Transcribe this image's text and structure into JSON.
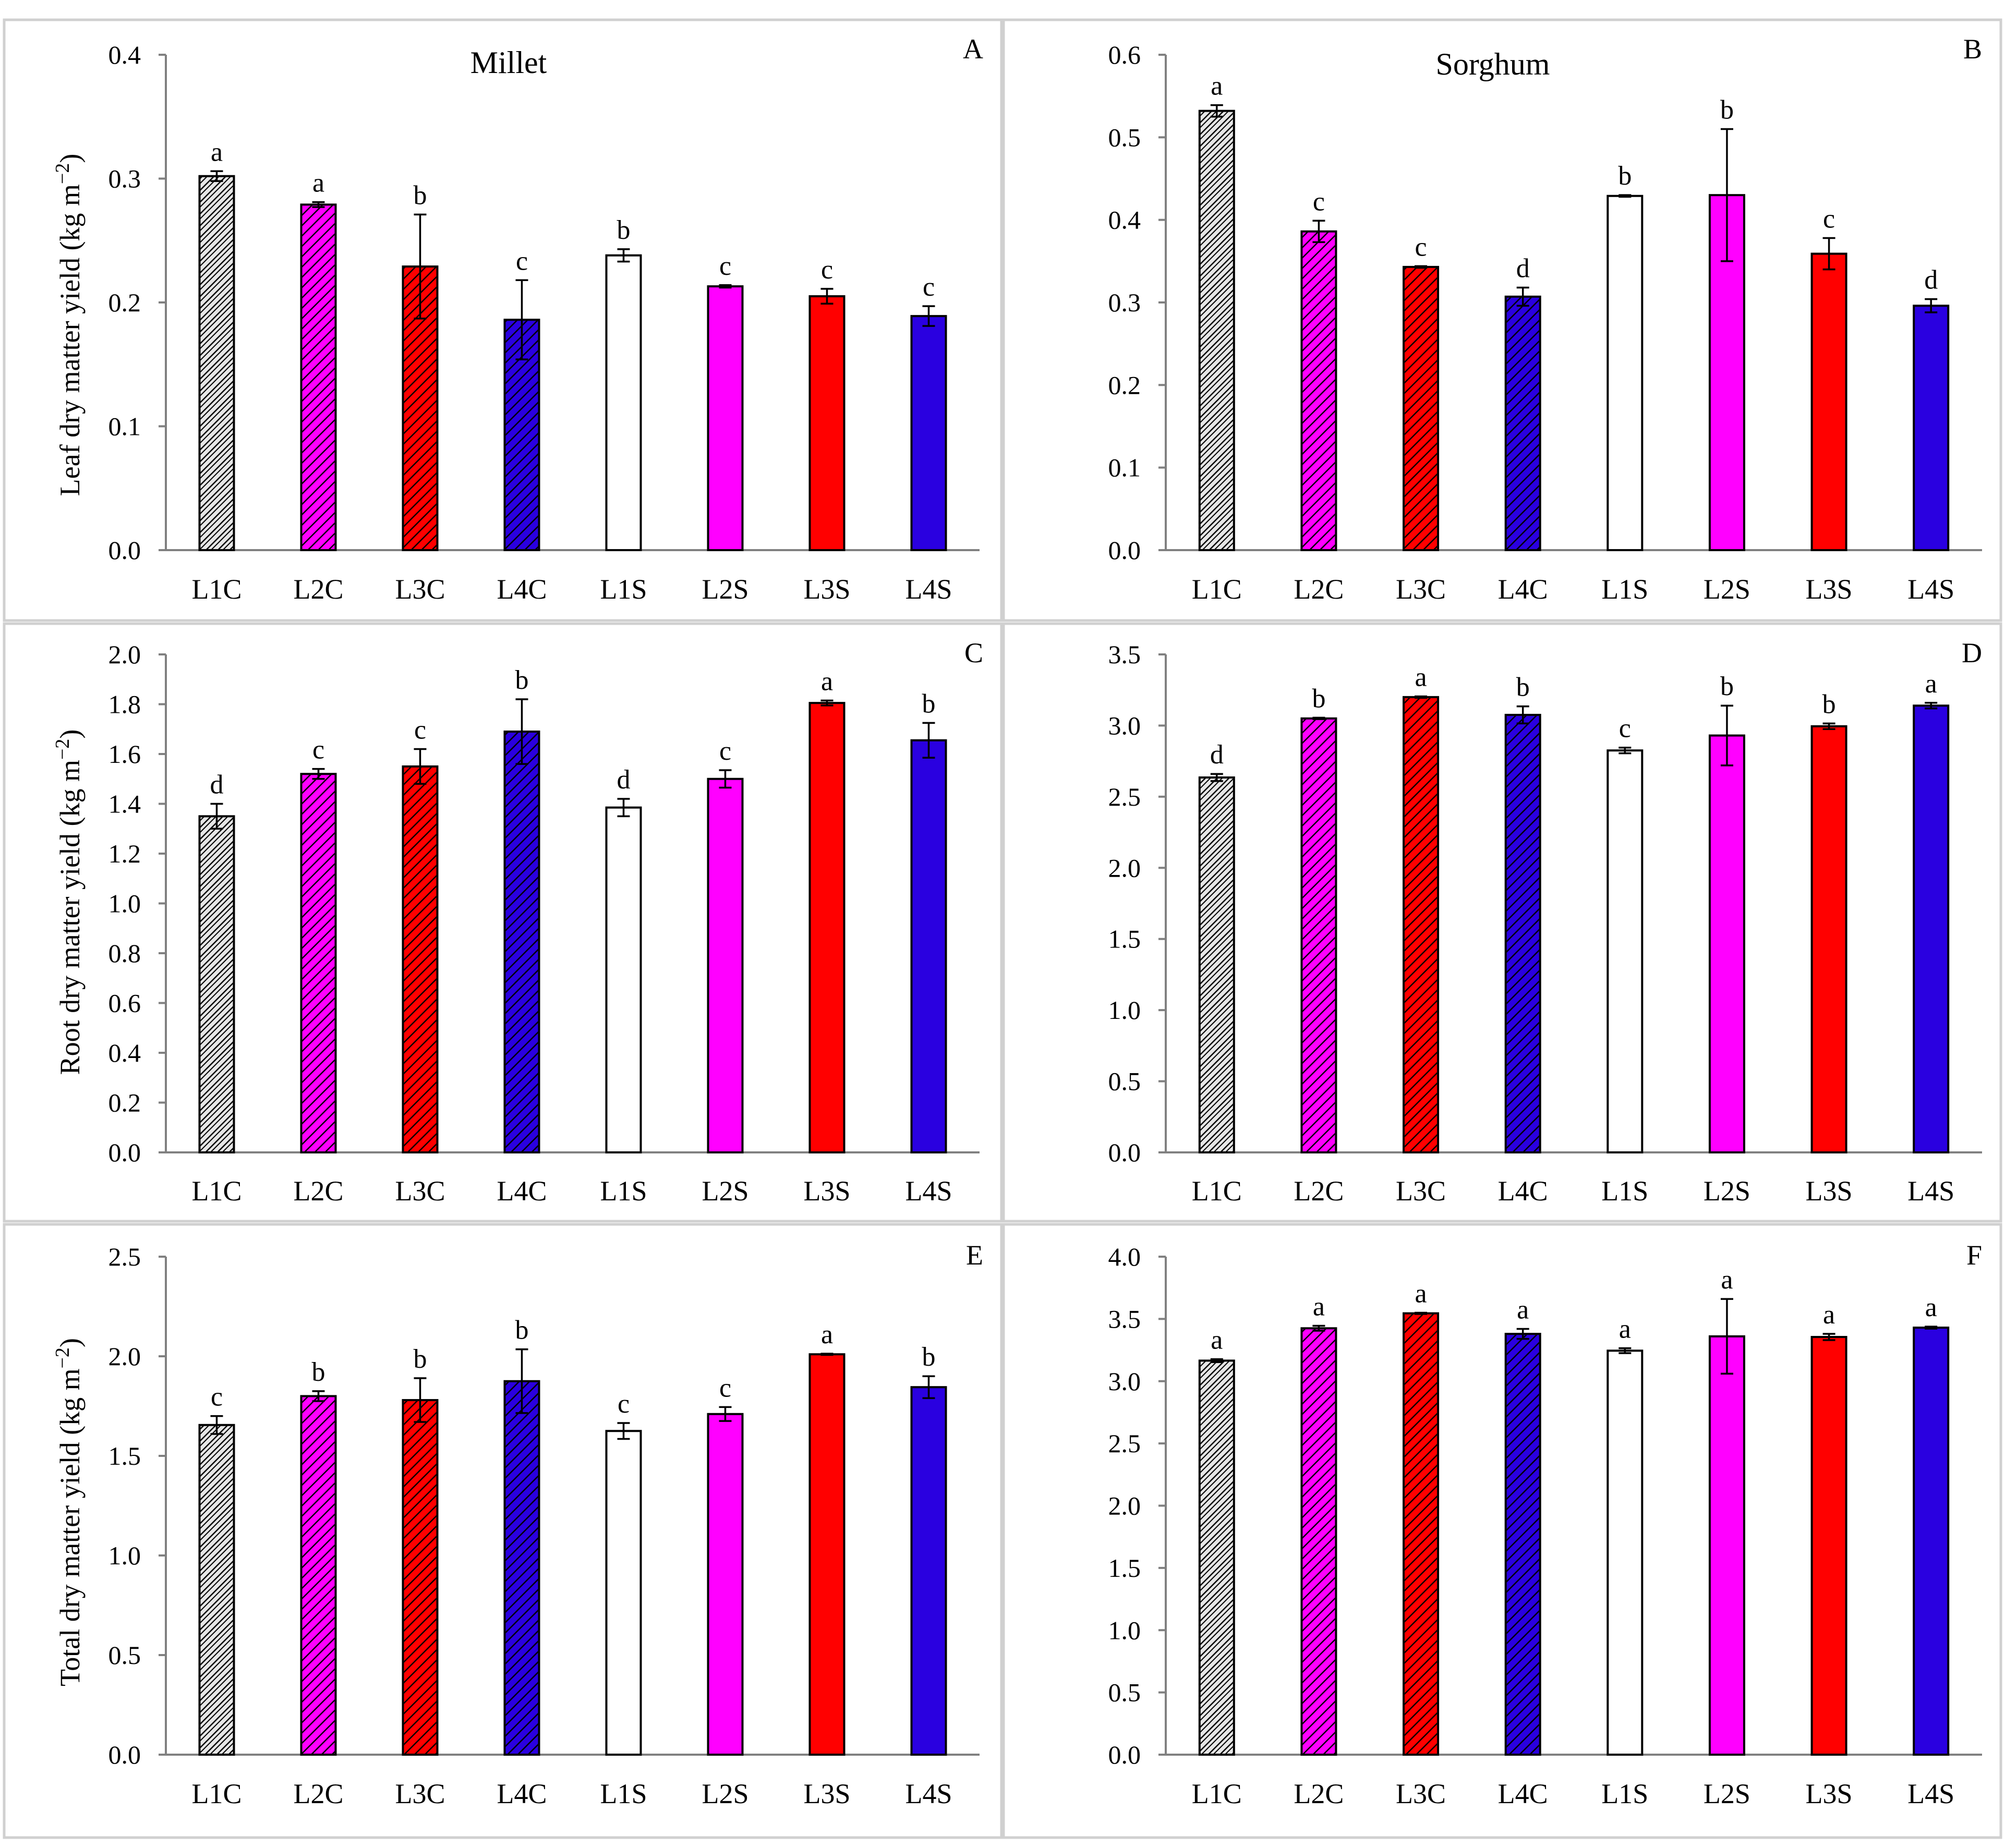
{
  "colors": {
    "L1": "#d8d8d8",
    "L2": "#ff00ff",
    "L3": "#ff0000",
    "L4": "#2a00e0",
    "L1S": "#ffffff",
    "hatch_line": "#000000"
  },
  "panels": [
    {
      "id": "A",
      "title": "Millet",
      "y_title_lines": [
        "Leaf dry matter yield (kg m",
        "−2",
        ")"
      ],
      "chart_data": {
        "type": "bar",
        "ylabel": "Leaf dry matter yield (kg m−2)",
        "ylim": [
          0,
          0.4
        ],
        "yticks": [
          0.0,
          0.1,
          0.2,
          0.3,
          0.4
        ],
        "ytick_labels": [
          "0.0",
          "0.1",
          "0.2",
          "0.3",
          "0.4"
        ],
        "categories": [
          "L1C",
          "L2C",
          "L3C",
          "L4C",
          "L1S",
          "L2S",
          "L3S",
          "L4S"
        ],
        "values": [
          0.302,
          0.279,
          0.229,
          0.186,
          0.238,
          0.213,
          0.205,
          0.189
        ],
        "errors": [
          0.004,
          0.002,
          0.042,
          0.032,
          0.005,
          0.001,
          0.006,
          0.008
        ],
        "significance": [
          "a",
          "a",
          "b",
          "c",
          "b",
          "c",
          "c",
          "c"
        ]
      }
    },
    {
      "id": "B",
      "title": "Sorghum",
      "y_title_lines": [],
      "chart_data": {
        "type": "bar",
        "ylabel": "",
        "ylim": [
          0,
          0.6
        ],
        "yticks": [
          0.0,
          0.1,
          0.2,
          0.3,
          0.4,
          0.5,
          0.6
        ],
        "ytick_labels": [
          "0.0",
          "0.1",
          "0.2",
          "0.3",
          "0.4",
          "0.5",
          "0.6"
        ],
        "categories": [
          "L1C",
          "L2C",
          "L3C",
          "L4C",
          "L1S",
          "L2S",
          "L3S",
          "L4S"
        ],
        "values": [
          0.532,
          0.386,
          0.343,
          0.307,
          0.429,
          0.43,
          0.359,
          0.296
        ],
        "errors": [
          0.007,
          0.013,
          0.001,
          0.011,
          0.001,
          0.08,
          0.019,
          0.008
        ],
        "significance": [
          "a",
          "c",
          "c",
          "d",
          "b",
          "b",
          "c",
          "d"
        ]
      }
    },
    {
      "id": "C",
      "title": "",
      "y_title_lines": [
        "Root dry matter yield (kg m",
        "−2",
        ")"
      ],
      "chart_data": {
        "type": "bar",
        "ylabel": "Root dry matter yield (kg m−2)",
        "ylim": [
          0,
          2.0
        ],
        "yticks": [
          0.0,
          0.2,
          0.4,
          0.6,
          0.8,
          1.0,
          1.2,
          1.4,
          1.6,
          1.8,
          2.0
        ],
        "ytick_labels": [
          "0.0",
          "0.2",
          "0.4",
          "0.6",
          "0.8",
          "1.0",
          "1.2",
          "1.4",
          "1.6",
          "1.8",
          "2.0"
        ],
        "categories": [
          "L1C",
          "L2C",
          "L3C",
          "L4C",
          "L1S",
          "L2S",
          "L3S",
          "L4S"
        ],
        "values": [
          1.35,
          1.52,
          1.55,
          1.69,
          1.385,
          1.5,
          1.805,
          1.655
        ],
        "errors": [
          0.05,
          0.02,
          0.07,
          0.13,
          0.035,
          0.035,
          0.01,
          0.07
        ],
        "significance": [
          "d",
          "c",
          "c",
          "b",
          "d",
          "c",
          "a",
          "b"
        ]
      }
    },
    {
      "id": "D",
      "title": "",
      "y_title_lines": [],
      "chart_data": {
        "type": "bar",
        "ylabel": "",
        "ylim": [
          0,
          3.5
        ],
        "yticks": [
          0.0,
          0.5,
          1.0,
          1.5,
          2.0,
          2.5,
          3.0,
          3.5
        ],
        "ytick_labels": [
          "0.0",
          "0.5",
          "1.0",
          "1.5",
          "2.0",
          "2.5",
          "3.0",
          "3.5"
        ],
        "categories": [
          "L1C",
          "L2C",
          "L3C",
          "L4C",
          "L1S",
          "L2S",
          "L3S",
          "L4S"
        ],
        "values": [
          2.635,
          3.05,
          3.2,
          3.075,
          2.825,
          2.93,
          2.995,
          3.14
        ],
        "errors": [
          0.025,
          0.005,
          0.005,
          0.06,
          0.02,
          0.21,
          0.02,
          0.02
        ],
        "significance": [
          "d",
          "b",
          "a",
          "b",
          "c",
          "b",
          "b",
          "a"
        ]
      }
    },
    {
      "id": "E",
      "title": "",
      "y_title_lines": [
        "Total dry matter yield (kg m",
        "−2",
        ")"
      ],
      "chart_data": {
        "type": "bar",
        "ylabel": "Total dry matter yield (kg m−2)",
        "ylim": [
          0,
          2.5
        ],
        "yticks": [
          0.0,
          0.5,
          1.0,
          1.5,
          2.0,
          2.5
        ],
        "ytick_labels": [
          "0.0",
          "0.5",
          "1.0",
          "1.5",
          "2.0",
          "2.5"
        ],
        "categories": [
          "L1C",
          "L2C",
          "L3C",
          "L4C",
          "L1S",
          "L2S",
          "L3S",
          "L4S"
        ],
        "values": [
          1.655,
          1.8,
          1.78,
          1.875,
          1.625,
          1.71,
          2.01,
          1.845
        ],
        "errors": [
          0.045,
          0.025,
          0.11,
          0.16,
          0.04,
          0.035,
          0.003,
          0.055
        ],
        "significance": [
          "c",
          "b",
          "b",
          "b",
          "c",
          "c",
          "a",
          "b"
        ]
      }
    },
    {
      "id": "F",
      "title": "",
      "y_title_lines": [],
      "chart_data": {
        "type": "bar",
        "ylabel": "",
        "ylim": [
          0,
          4.0
        ],
        "yticks": [
          0.0,
          0.5,
          1.0,
          1.5,
          2.0,
          2.5,
          3.0,
          3.5,
          4.0
        ],
        "ytick_labels": [
          "0.0",
          "0.5",
          "1.0",
          "1.5",
          "2.0",
          "2.5",
          "3.0",
          "3.5",
          "4.0"
        ],
        "categories": [
          "L1C",
          "L2C",
          "L3C",
          "L4C",
          "L1S",
          "L2S",
          "L3S",
          "L4S"
        ],
        "values": [
          3.165,
          3.425,
          3.545,
          3.38,
          3.245,
          3.36,
          3.355,
          3.43
        ],
        "errors": [
          0.012,
          0.02,
          0.005,
          0.04,
          0.02,
          0.3,
          0.025,
          0.008
        ],
        "significance": [
          "a",
          "a",
          "a",
          "a",
          "a",
          "a",
          "a",
          "a"
        ]
      }
    }
  ]
}
